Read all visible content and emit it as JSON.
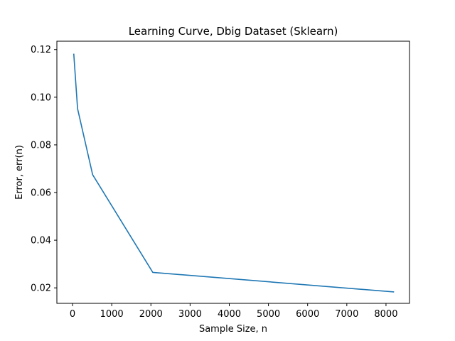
{
  "chart_data": {
    "type": "line",
    "title": "Learning Curve, Dbig Dataset (Sklearn)",
    "xlabel": "Sample Size, n",
    "ylabel": "Error, err(n)",
    "xlim": [
      -400,
      8600
    ],
    "ylim": [
      0.0135,
      0.1235
    ],
    "xticks": [
      0,
      1000,
      2000,
      3000,
      4000,
      5000,
      6000,
      7000,
      8000
    ],
    "xtick_labels": [
      "0",
      "1000",
      "2000",
      "3000",
      "4000",
      "5000",
      "6000",
      "7000",
      "8000"
    ],
    "yticks": [
      0.02,
      0.04,
      0.06,
      0.08,
      0.1,
      0.12
    ],
    "ytick_labels": [
      "0.02",
      "0.04",
      "0.06",
      "0.08",
      "0.10",
      "0.12"
    ],
    "grid": false,
    "series": [
      {
        "color": "#1f77b4",
        "x": [
          32,
          128,
          512,
          2048,
          8192
        ],
        "y": [
          0.118,
          0.0952,
          0.0675,
          0.0265,
          0.0183
        ]
      }
    ]
  }
}
